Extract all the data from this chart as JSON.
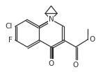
{
  "bg_color": "#ffffff",
  "line_color": "#303030",
  "lw": 0.9,
  "figsize": [
    1.38,
    1.04
  ],
  "dpi": 100,
  "xlim": [
    0,
    138
  ],
  "ylim": [
    0,
    104
  ]
}
